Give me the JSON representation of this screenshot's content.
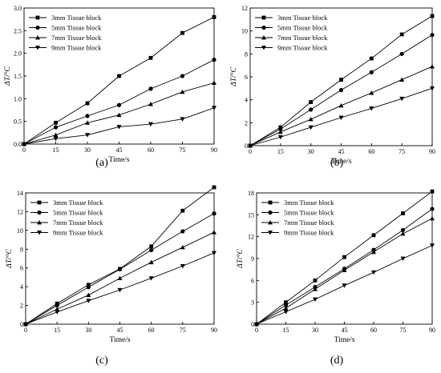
{
  "figure": {
    "panels": [
      {
        "panel_label": "(a)",
        "xlabel": "Time/s",
        "ylabel": "ΔT/°C",
        "xlim": [
          0,
          90
        ],
        "ylim": [
          0,
          3
        ],
        "xticks": [
          0,
          15,
          30,
          45,
          60,
          75,
          90
        ],
        "yticks": [
          0,
          0.5,
          1.0,
          1.5,
          2.0,
          2.5,
          3.0
        ],
        "ytick_labels": [
          "0.0",
          "0.5",
          "1.0",
          "1.5",
          "2.0",
          "2.5",
          "3.0"
        ]
      },
      {
        "panel_label": "(b)",
        "xlabel": "Time/s",
        "ylabel": "ΔT/°C",
        "xlim": [
          0,
          90
        ],
        "ylim": [
          0,
          12
        ],
        "xticks": [
          0,
          15,
          30,
          45,
          60,
          75,
          90
        ],
        "yticks": [
          0,
          2,
          4,
          6,
          8,
          10,
          12
        ],
        "ytick_labels": [
          "0",
          "2",
          "4",
          "6",
          "8",
          "10",
          "12"
        ]
      },
      {
        "panel_label": "(c)",
        "xlabel": "Time/s",
        "ylabel": "ΔT/°C",
        "xlim": [
          0,
          90
        ],
        "ylim": [
          0,
          14
        ],
        "xticks": [
          0,
          15,
          30,
          45,
          60,
          75,
          90
        ],
        "yticks": [
          0,
          2,
          4,
          6,
          8,
          10,
          12,
          14
        ],
        "ytick_labels": [
          "0",
          "2",
          "4",
          "6",
          "8",
          "10",
          "12",
          "14"
        ]
      },
      {
        "panel_label": "(d)",
        "xlabel": "Time/s",
        "ylabel": "ΔT/°C",
        "xlim": [
          0,
          90
        ],
        "ylim": [
          0,
          18
        ],
        "xticks": [
          0,
          15,
          30,
          45,
          60,
          75,
          90
        ],
        "yticks": [
          0,
          3,
          6,
          9,
          12,
          15,
          18
        ],
        "ytick_labels": [
          "0",
          "3",
          "6",
          "9",
          "12",
          "15",
          "18"
        ]
      }
    ]
  },
  "chart_data": [
    {
      "type": "line",
      "panel": "(a)",
      "x": [
        0,
        15,
        30,
        45,
        60,
        75,
        90
      ],
      "xlabel": "Time/s",
      "ylabel": "ΔT/°C",
      "xlim": [
        0,
        90
      ],
      "ylim": [
        0,
        3
      ],
      "grid": false,
      "legend_position": "top-left",
      "series": [
        {
          "name": "3mm Tissue block",
          "marker": "square",
          "values": [
            0,
            0.47,
            0.9,
            1.5,
            1.9,
            2.45,
            2.8
          ]
        },
        {
          "name": "5mm Tissue block",
          "marker": "circle",
          "values": [
            0,
            0.37,
            0.62,
            0.86,
            1.22,
            1.5,
            1.86
          ]
        },
        {
          "name": "7mm Tissue block",
          "marker": "triangle-up",
          "values": [
            0,
            0.2,
            0.47,
            0.64,
            0.88,
            1.15,
            1.35
          ]
        },
        {
          "name": "9mm Tissue block",
          "marker": "triangle-down",
          "values": [
            0,
            0.12,
            0.2,
            0.38,
            0.44,
            0.55,
            0.8
          ]
        }
      ]
    },
    {
      "type": "line",
      "panel": "(b)",
      "x": [
        0,
        15,
        30,
        45,
        60,
        75,
        90
      ],
      "xlabel": "Time/s",
      "ylabel": "ΔT/°C",
      "xlim": [
        0,
        90
      ],
      "ylim": [
        0,
        12
      ],
      "grid": false,
      "legend_position": "top-left",
      "series": [
        {
          "name": "3mm Tissue block",
          "marker": "square",
          "values": [
            0,
            1.6,
            3.8,
            5.75,
            7.6,
            9.7,
            11.3
          ]
        },
        {
          "name": "5mm Tissue block",
          "marker": "circle",
          "values": [
            0,
            1.45,
            3.15,
            4.85,
            6.4,
            8.0,
            9.65
          ]
        },
        {
          "name": "7mm Tissue block",
          "marker": "triangle-up",
          "values": [
            0,
            1.2,
            2.3,
            3.5,
            4.6,
            5.75,
            6.9
          ]
        },
        {
          "name": "9mm Tissue block",
          "marker": "triangle-down",
          "values": [
            0,
            0.75,
            1.6,
            2.45,
            3.25,
            4.1,
            5.0
          ]
        }
      ]
    },
    {
      "type": "line",
      "panel": "(c)",
      "x": [
        0,
        15,
        30,
        45,
        60,
        75,
        90
      ],
      "xlabel": "Time/s",
      "ylabel": "ΔT/°C",
      "xlim": [
        0,
        90
      ],
      "ylim": [
        0,
        14
      ],
      "grid": false,
      "legend_position": "top-left",
      "series": [
        {
          "name": "3mm Tissue block",
          "marker": "square",
          "values": [
            0,
            2.2,
            4.2,
            5.9,
            8.3,
            12.1,
            14.6
          ]
        },
        {
          "name": "5mm Tissue block",
          "marker": "circle",
          "values": [
            0,
            2.0,
            3.95,
            5.85,
            7.9,
            9.9,
            11.8
          ]
        },
        {
          "name": "7mm Tissue block",
          "marker": "triangle-up",
          "values": [
            0,
            1.6,
            3.1,
            4.9,
            6.6,
            8.2,
            9.8
          ]
        },
        {
          "name": "9mm Tissue block",
          "marker": "triangle-down",
          "values": [
            0,
            1.3,
            2.5,
            3.65,
            4.9,
            6.2,
            7.6
          ]
        }
      ]
    },
    {
      "type": "line",
      "panel": "(d)",
      "x": [
        0,
        15,
        30,
        45,
        60,
        75,
        90
      ],
      "xlabel": "Time/s",
      "ylabel": "ΔT/°C",
      "xlim": [
        0,
        90
      ],
      "ylim": [
        0,
        18
      ],
      "grid": false,
      "legend_position": "top-left",
      "series": [
        {
          "name": "3mm Tissue block",
          "marker": "square",
          "values": [
            0,
            3.0,
            6.0,
            9.2,
            12.2,
            15.2,
            18.2
          ]
        },
        {
          "name": "5mm Tissue block",
          "marker": "circle",
          "values": [
            0,
            2.6,
            5.1,
            7.6,
            10.2,
            12.9,
            15.8
          ]
        },
        {
          "name": "7mm Tissue block",
          "marker": "triangle-up",
          "values": [
            0,
            2.2,
            4.8,
            7.4,
            9.9,
            12.4,
            14.5
          ]
        },
        {
          "name": "9mm Tissue block",
          "marker": "triangle-down",
          "values": [
            0,
            1.7,
            3.4,
            5.3,
            7.1,
            9.0,
            10.8
          ]
        }
      ]
    }
  ]
}
